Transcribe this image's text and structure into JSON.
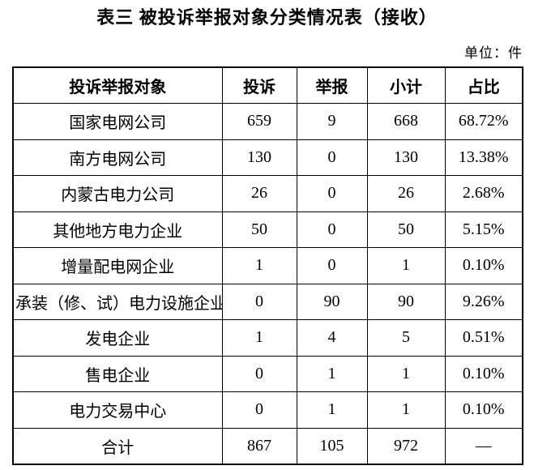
{
  "title": "表三 被投诉举报对象分类情况表（接收）",
  "unit_label": "单位：件",
  "colors": {
    "text": "#000000",
    "border": "#000000",
    "background": "#ffffff"
  },
  "table": {
    "headers": [
      "投诉举报对象",
      "投诉",
      "举报",
      "小计",
      "占比"
    ],
    "rows": [
      [
        "国家电网公司",
        "659",
        "9",
        "668",
        "68.72%"
      ],
      [
        "南方电网公司",
        "130",
        "0",
        "130",
        "13.38%"
      ],
      [
        "内蒙古电力公司",
        "26",
        "0",
        "26",
        "2.68%"
      ],
      [
        "其他地方电力企业",
        "50",
        "0",
        "50",
        "5.15%"
      ],
      [
        "增量配电网企业",
        "1",
        "0",
        "1",
        "0.10%"
      ],
      [
        "承装（修、试）电力设施企业",
        "0",
        "90",
        "90",
        "9.26%"
      ],
      [
        "发电企业",
        "1",
        "4",
        "5",
        "0.51%"
      ],
      [
        "售电企业",
        "0",
        "1",
        "1",
        "0.10%"
      ],
      [
        "电力交易中心",
        "0",
        "1",
        "1",
        "0.10%"
      ]
    ],
    "total_row": [
      "合计",
      "867",
      "105",
      "972",
      "—"
    ]
  }
}
